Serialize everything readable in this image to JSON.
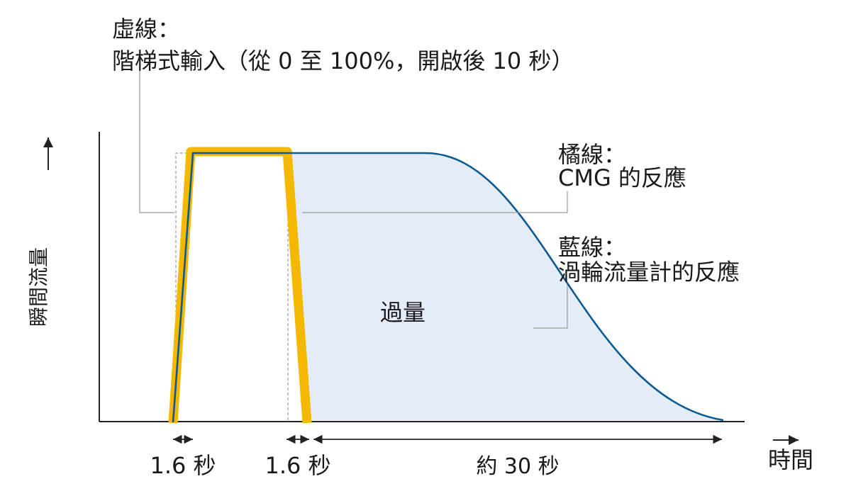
{
  "annotations": {
    "dashed": {
      "heading": "虛線：",
      "body": "階梯式輸入（從 0 至 100%，開啟後 10 秒）"
    },
    "orange": {
      "heading": "橘線：",
      "body": "CMG 的反應"
    },
    "blue": {
      "heading": "藍線：",
      "body": "渦輪流量計的反應"
    },
    "overshoot": "過量"
  },
  "axes": {
    "y_label": "瞬間流量",
    "x_label": "時間"
  },
  "intervals": {
    "rise": "1.6 秒",
    "fall": "1.6 秒",
    "tail": "約 30 秒"
  },
  "colors": {
    "orange": "#f5b800",
    "blue": "#0b5a94",
    "fill": "#e4ecf7",
    "guide": "#9a9a9a",
    "axis": "#222222"
  }
}
